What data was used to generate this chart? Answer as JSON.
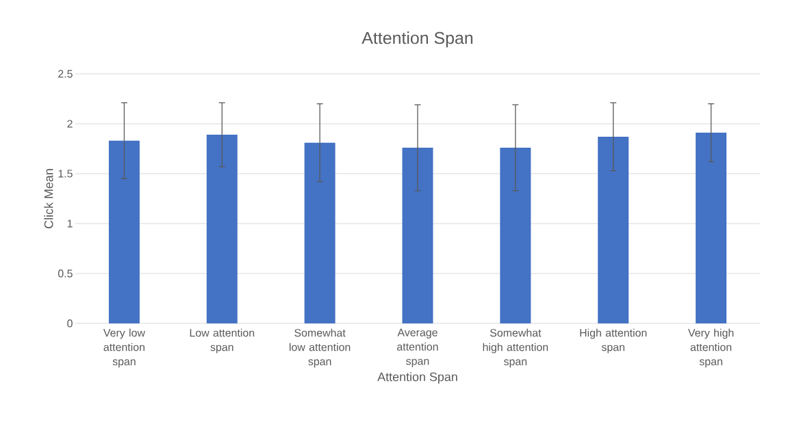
{
  "chart_data": {
    "type": "bar",
    "title": "Attention Span",
    "xlabel": "Attention Span",
    "ylabel": "Click Mean",
    "categories": [
      "Very low attention span",
      "Low attention span",
      "Somewhat low attention span",
      "Average attention span",
      "Somewhat high attention span",
      "High attention span",
      "Very high attention span"
    ],
    "values": [
      1.83,
      1.89,
      1.81,
      1.76,
      1.76,
      1.87,
      1.91
    ],
    "errors": [
      0.38,
      0.32,
      0.39,
      0.43,
      0.43,
      0.34,
      0.29
    ],
    "color": "#4472c4",
    "ylim": [
      0,
      2.5
    ],
    "yticks": [
      0,
      0.5,
      1,
      1.5,
      2,
      2.5
    ],
    "grid": "y"
  }
}
